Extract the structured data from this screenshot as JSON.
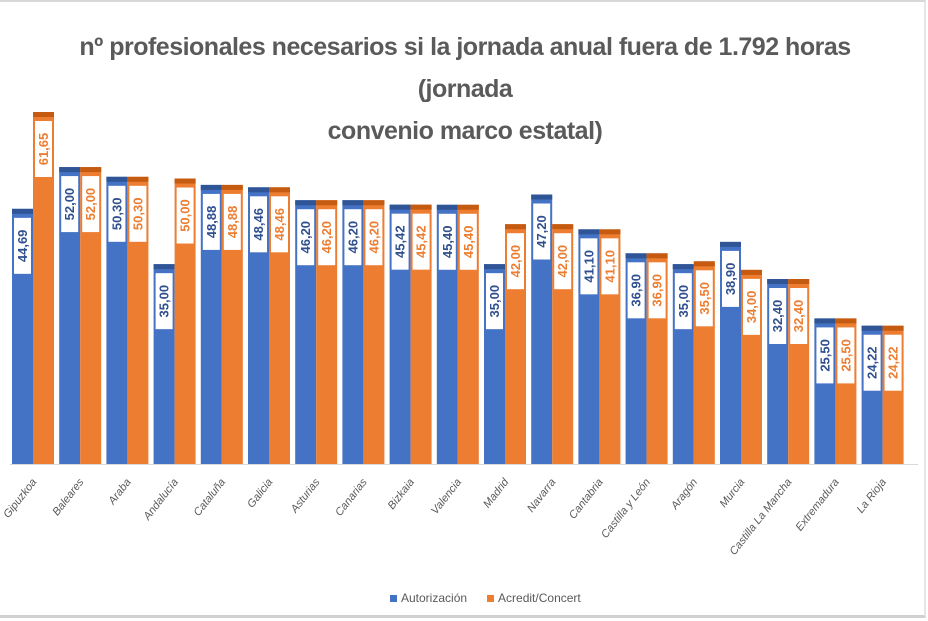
{
  "chart_data": {
    "type": "bar",
    "title": "nº profesionales necesarios si la jornada anual fuera de 1.792 horas (jornada convenio marco estatal)",
    "title_lines": [
      "nº profesionales necesarios si la jornada anual fuera de 1.792 horas (jornada",
      "convenio marco estatal)"
    ],
    "categories": [
      "Gipuzkoa",
      "Baleares",
      "Araba",
      "Andalucía",
      "Cataluña",
      "Galicia",
      "Asturias",
      "Canarias",
      "Bizkaia",
      "Valencia",
      "Madrid",
      "Navarra",
      "Cantabria",
      "Castilla y León",
      "Aragón",
      "Murcia",
      "Castilla La Mancha",
      "Extremadura",
      "La Rioja"
    ],
    "series": [
      {
        "name": "Autorización",
        "color": "#4472C4",
        "values": [
          44.69,
          52.0,
          50.3,
          35.0,
          48.88,
          48.46,
          46.2,
          46.2,
          45.42,
          45.4,
          35.0,
          47.2,
          41.1,
          36.9,
          35.0,
          38.9,
          32.4,
          25.5,
          24.22
        ],
        "labels": [
          "44,69",
          "52,00",
          "50,30",
          "35,00",
          "48,88",
          "48,46",
          "46,20",
          "46,20",
          "45,42",
          "45,40",
          "35,00",
          "47,20",
          "41,10",
          "36,90",
          "35,00",
          "38,90",
          "32,40",
          "25,50",
          "24,22"
        ]
      },
      {
        "name": "Acredit/Concert",
        "color": "#ED7D31",
        "values": [
          61.65,
          52.0,
          50.3,
          50.0,
          48.88,
          48.46,
          46.2,
          46.2,
          45.42,
          45.4,
          42.0,
          42.0,
          41.1,
          36.9,
          35.5,
          34.0,
          32.4,
          25.5,
          24.22
        ],
        "labels": [
          "61,65",
          "52,00",
          "50,30",
          "50,00",
          "48,88",
          "48,46",
          "46,20",
          "46,20",
          "45,42",
          "45,40",
          "42,00",
          "42,00",
          "41,10",
          "36,90",
          "35,50",
          "34,00",
          "32,40",
          "25,50",
          "24,22"
        ]
      }
    ],
    "ylim": [
      0,
      61.65
    ],
    "xlabel": "",
    "ylabel": "",
    "grid": false,
    "legend_position": "bottom"
  }
}
